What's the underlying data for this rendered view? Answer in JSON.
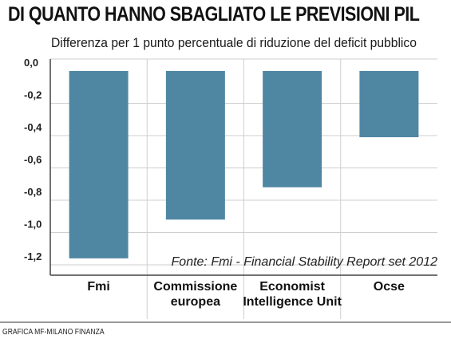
{
  "chart_data": {
    "type": "bar",
    "title": "DI QUANTO HANNO SBAGLIATO LE PREVISIONI PIL",
    "subtitle": "Differenza per 1 punto percentuale di riduzione del deficit pubblico",
    "categories": [
      "Fmi",
      "Commissione europea",
      "Economist Intelligence Unit",
      "Ocse"
    ],
    "category_lines": [
      [
        "Fmi"
      ],
      [
        "Commissione",
        "europea"
      ],
      [
        "Economist",
        "Intelligence Unit"
      ],
      [
        "Ocse"
      ]
    ],
    "values": [
      -1.16,
      -0.92,
      -0.72,
      -0.41
    ],
    "ylim": [
      -1.3,
      0
    ],
    "yticks": [
      0,
      -0.2,
      -0.4,
      -0.6,
      -0.8,
      -1.0,
      -1.2
    ],
    "ytick_labels": [
      "0,0",
      "-0,2",
      "-0,4",
      "-0,6",
      "-0,8",
      "-1,0",
      "-1,2"
    ],
    "grid": true,
    "annotation": "Fonte: Fmi - Financial Stability Report set 2012",
    "credit": "GRAFICA MF-MILANO FINANZA",
    "colors": {
      "bar": "#4f87a3",
      "grid": "#cfcfcf",
      "axis": "#444444"
    }
  }
}
